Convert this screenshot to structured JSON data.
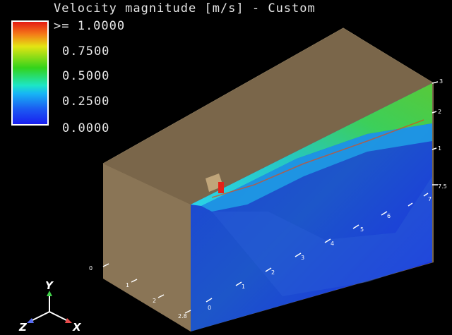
{
  "legend": {
    "title": "Velocity magnitude [m/s] - Custom",
    "labels": [
      ">=  1.0000",
      "0.7500",
      "0.5000",
      "0.2500",
      "0.0000"
    ]
  },
  "ticks": {
    "vertical": [
      "3",
      "2",
      "1",
      "0"
    ],
    "length": [
      "7.5",
      "7",
      "6",
      "5",
      "4",
      "3",
      "2",
      "1",
      "0"
    ],
    "width": [
      "0",
      "1",
      "2",
      "2.8"
    ]
  },
  "triad": {
    "y": "Y",
    "z": "Z",
    "x": "X"
  },
  "colors": {
    "background": "#000000",
    "box_fill": "#7e6a4e",
    "low": "#1a1ff0",
    "mid": "#1de6c5",
    "high": "#e51b14"
  }
}
